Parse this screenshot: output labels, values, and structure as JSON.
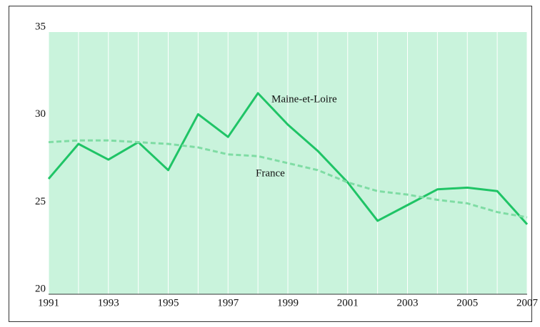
{
  "chart_data": {
    "type": "line",
    "x": [
      1991,
      1992,
      1993,
      1994,
      1995,
      1996,
      1997,
      1998,
      1999,
      2000,
      2001,
      2002,
      2003,
      2004,
      2005,
      2006,
      2007
    ],
    "series": [
      {
        "name": "Maine-et-Loire",
        "color": "#1fc466",
        "dashed": false,
        "values": [
          26.6,
          28.6,
          27.7,
          28.7,
          27.1,
          30.3,
          29.0,
          31.5,
          29.7,
          28.2,
          26.4,
          24.2,
          25.1,
          26.0,
          26.1,
          25.9,
          24.0
        ]
      },
      {
        "name": "France",
        "color": "#7fdca4",
        "dashed": true,
        "values": [
          28.7,
          28.8,
          28.8,
          28.7,
          28.6,
          28.4,
          28.0,
          27.9,
          27.5,
          27.1,
          26.4,
          25.9,
          25.7,
          25.4,
          25.2,
          24.7,
          24.4
        ]
      }
    ],
    "xlim": [
      1991,
      2007
    ],
    "xticks": [
      1991,
      1993,
      1995,
      1997,
      1999,
      2001,
      2003,
      2005,
      2007
    ],
    "ylim": [
      20,
      35
    ],
    "yticks": [
      20,
      25,
      30,
      35
    ],
    "grid": true,
    "background": "#c9f3dc"
  }
}
